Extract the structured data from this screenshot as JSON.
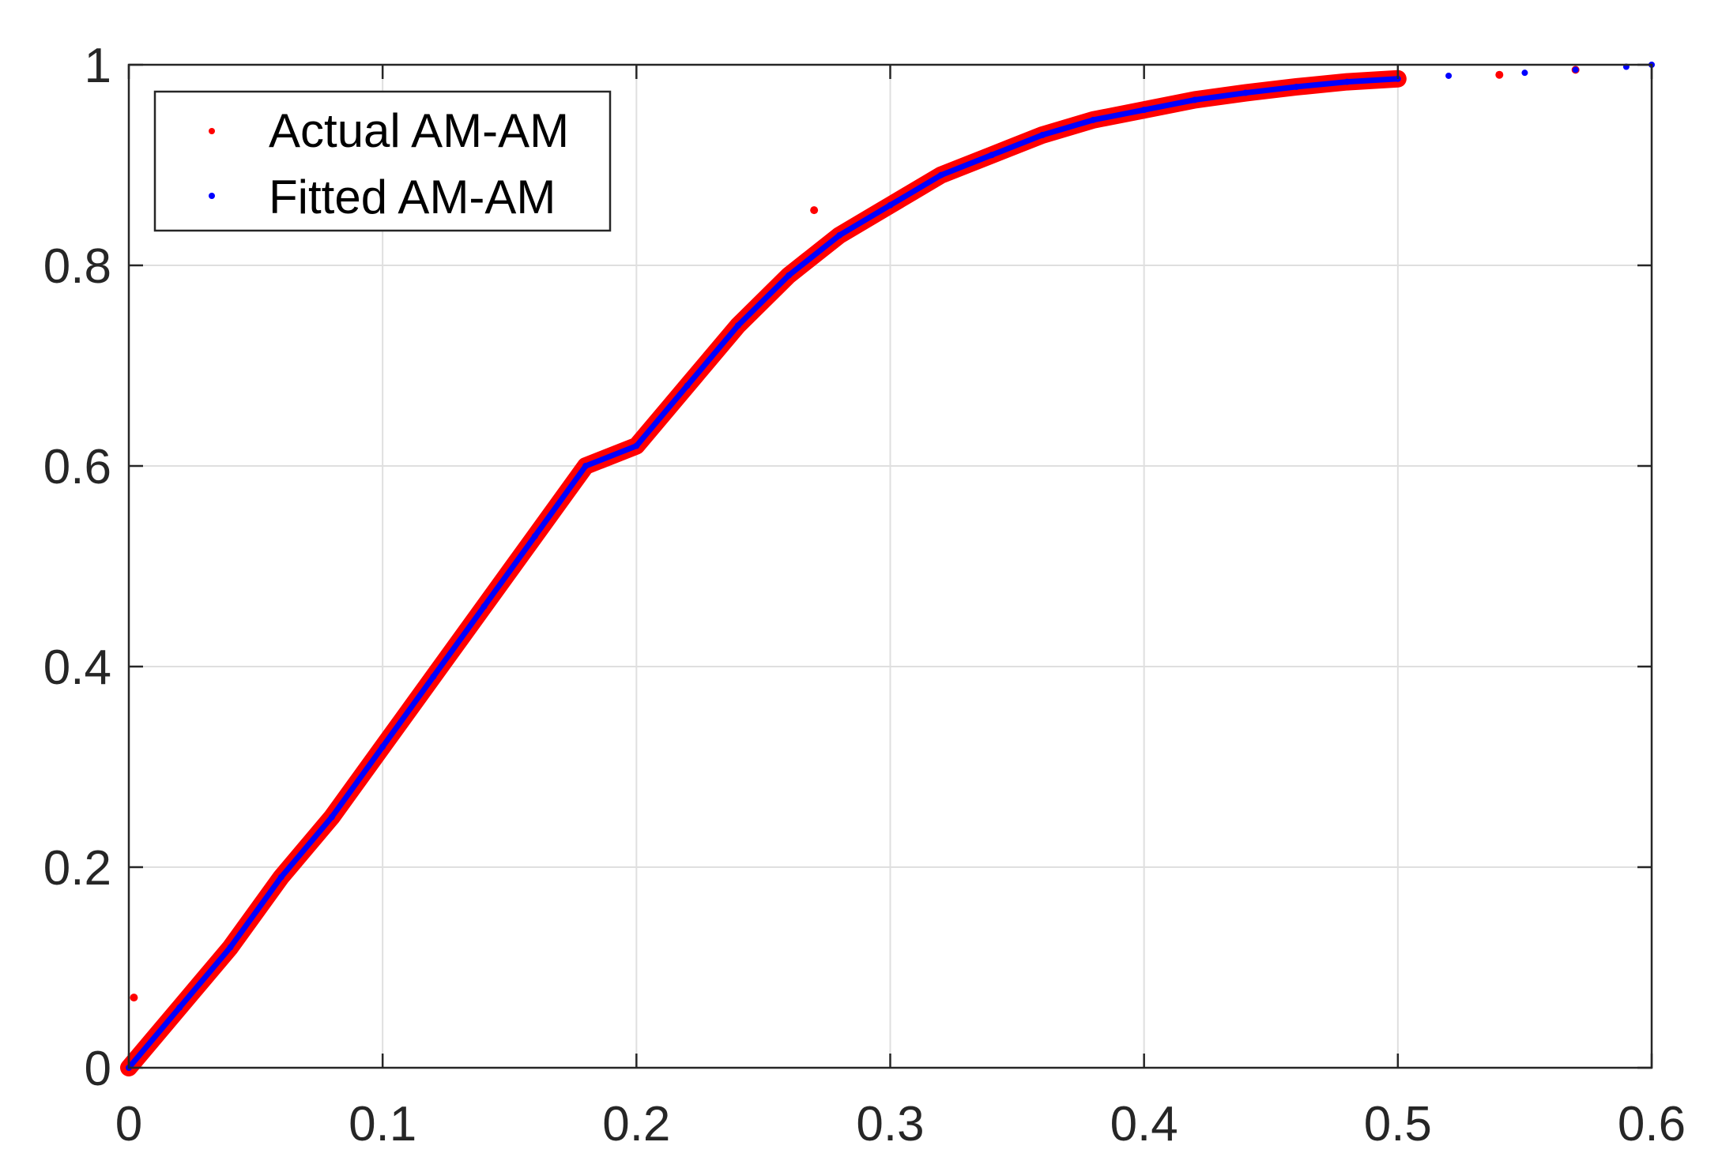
{
  "chart_data": {
    "type": "scatter",
    "title": "",
    "xlabel": "",
    "ylabel": "",
    "xlim": [
      0,
      0.6
    ],
    "ylim": [
      0,
      1
    ],
    "xticks": [
      0,
      0.1,
      0.2,
      0.3,
      0.4,
      0.5,
      0.6
    ],
    "yticks": [
      0,
      0.2,
      0.4,
      0.6,
      0.8,
      1
    ],
    "xtick_labels": [
      "0",
      "0.1",
      "0.2",
      "0.3",
      "0.4",
      "0.5",
      "0.6"
    ],
    "ytick_labels": [
      "0",
      "0.2",
      "0.4",
      "0.6",
      "0.8",
      "1"
    ],
    "grid": true,
    "legend_position": "top-left",
    "series": [
      {
        "name": "Actual AM-AM",
        "color": "#ff0000",
        "x": [
          0,
          0.02,
          0.04,
          0.06,
          0.08,
          0.1,
          0.12,
          0.14,
          0.16,
          0.18,
          0.2,
          0.22,
          0.24,
          0.26,
          0.28,
          0.3,
          0.32,
          0.34,
          0.36,
          0.38,
          0.4,
          0.42,
          0.44,
          0.46,
          0.48,
          0.5,
          0.54,
          0.57,
          0.002,
          0.27
        ],
        "y": [
          0,
          0.06,
          0.12,
          0.19,
          0.25,
          0.32,
          0.39,
          0.46,
          0.53,
          0.6,
          0.62,
          0.68,
          0.74,
          0.79,
          0.83,
          0.86,
          0.89,
          0.91,
          0.93,
          0.945,
          0.955,
          0.965,
          0.972,
          0.978,
          0.983,
          0.986,
          0.99,
          0.995,
          0.07,
          0.855
        ]
      },
      {
        "name": "Fitted AM-AM",
        "color": "#0000ff",
        "x": [
          0,
          0.02,
          0.04,
          0.06,
          0.08,
          0.1,
          0.12,
          0.14,
          0.16,
          0.18,
          0.2,
          0.22,
          0.24,
          0.26,
          0.28,
          0.3,
          0.32,
          0.34,
          0.36,
          0.38,
          0.4,
          0.42,
          0.44,
          0.46,
          0.48,
          0.5,
          0.52,
          0.55,
          0.57,
          0.59,
          0.6
        ],
        "y": [
          0,
          0.06,
          0.12,
          0.19,
          0.25,
          0.32,
          0.39,
          0.46,
          0.53,
          0.6,
          0.62,
          0.68,
          0.74,
          0.79,
          0.83,
          0.86,
          0.89,
          0.91,
          0.93,
          0.945,
          0.955,
          0.965,
          0.972,
          0.978,
          0.983,
          0.986,
          0.989,
          0.992,
          0.995,
          0.998,
          1.0
        ]
      }
    ]
  }
}
